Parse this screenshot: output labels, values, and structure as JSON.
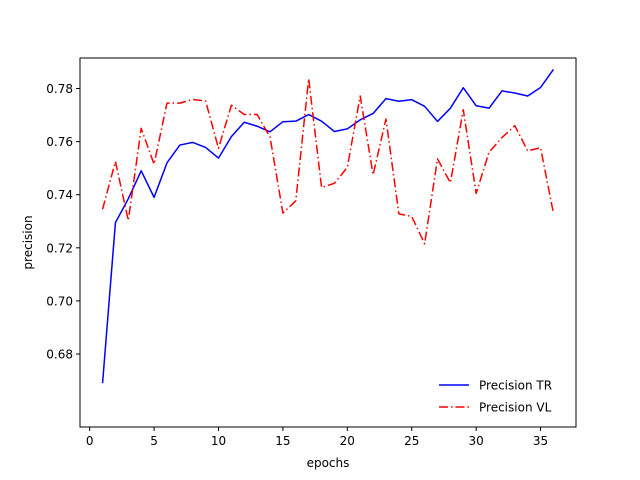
{
  "chart_data": {
    "type": "line",
    "title": "",
    "xlabel": "epochs",
    "ylabel": "precision",
    "xlim": [
      -0.75,
      37.75
    ],
    "ylim": [
      0.6525,
      0.7915
    ],
    "xticks": [
      0,
      5,
      10,
      15,
      20,
      25,
      30,
      35
    ],
    "yticks": [
      0.68,
      0.7,
      0.72,
      0.74,
      0.76,
      0.78
    ],
    "ytick_labels": [
      "0.68",
      "0.70",
      "0.72",
      "0.74",
      "0.76",
      "0.78"
    ],
    "grid": false,
    "legend_position": "lower-right",
    "x": [
      1,
      2,
      3,
      4,
      5,
      6,
      7,
      8,
      9,
      10,
      11,
      12,
      13,
      14,
      15,
      16,
      17,
      18,
      19,
      20,
      21,
      22,
      23,
      24,
      25,
      26,
      27,
      28,
      29,
      30,
      31,
      32,
      33,
      34,
      35,
      36
    ],
    "series": [
      {
        "name": "Precision TR",
        "color": "#0000ff",
        "line_style": "solid",
        "values": [
          0.669,
          0.7295,
          0.7385,
          0.749,
          0.739,
          0.752,
          0.7587,
          0.7597,
          0.7578,
          0.7538,
          0.7619,
          0.7673,
          0.7658,
          0.7637,
          0.7675,
          0.7677,
          0.7702,
          0.7677,
          0.7638,
          0.7648,
          0.7682,
          0.7706,
          0.7762,
          0.7752,
          0.7758,
          0.7733,
          0.7676,
          0.7726,
          0.7803,
          0.7735,
          0.7726,
          0.7791,
          0.7783,
          0.7772,
          0.7804,
          0.7872
        ]
      },
      {
        "name": "Precision VL",
        "color": "#ff0000",
        "line_style": "dashdot",
        "values": [
          0.7345,
          0.7525,
          0.7303,
          0.765,
          0.7515,
          0.7745,
          0.7745,
          0.7759,
          0.7753,
          0.7575,
          0.7737,
          0.7702,
          0.7702,
          0.7617,
          0.7331,
          0.7377,
          0.7837,
          0.7427,
          0.7443,
          0.7503,
          0.7772,
          0.7475,
          0.7685,
          0.7328,
          0.7318,
          0.7215,
          0.7535,
          0.7445,
          0.772,
          0.7405,
          0.756,
          0.7615,
          0.766,
          0.7565,
          0.7577,
          0.733
        ]
      }
    ]
  }
}
